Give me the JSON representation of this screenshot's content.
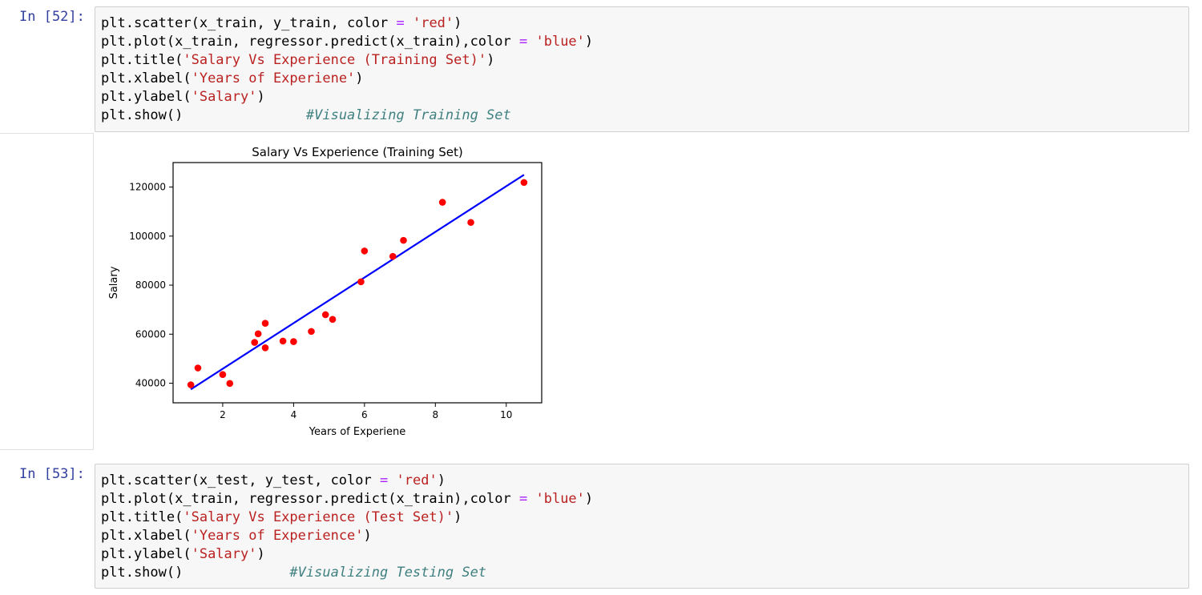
{
  "cell1": {
    "prompt": "In [52]:",
    "code": [
      [
        {
          "t": "plt.scatter(x_train, y_train, color "
        },
        {
          "t": "=",
          "c": "op"
        },
        {
          "t": " "
        },
        {
          "t": "'red'",
          "c": "str"
        },
        {
          "t": ")"
        }
      ],
      [
        {
          "t": "plt.plot(x_train, regressor.predict(x_train),color "
        },
        {
          "t": "=",
          "c": "op"
        },
        {
          "t": " "
        },
        {
          "t": "'blue'",
          "c": "str"
        },
        {
          "t": ")"
        }
      ],
      [
        {
          "t": "plt.title("
        },
        {
          "t": "'Salary Vs Experience (Training Set)'",
          "c": "str"
        },
        {
          "t": ")"
        }
      ],
      [
        {
          "t": "plt.xlabel("
        },
        {
          "t": "'Years of Experiene'",
          "c": "str"
        },
        {
          "t": ")"
        }
      ],
      [
        {
          "t": "plt.ylabel("
        },
        {
          "t": "'Salary'",
          "c": "str"
        },
        {
          "t": ")"
        }
      ],
      [
        {
          "t": "plt.show()               "
        },
        {
          "t": "#Visualizing Training Set",
          "c": "cmt"
        }
      ]
    ]
  },
  "cell2": {
    "prompt": "In [53]:",
    "code": [
      [
        {
          "t": "plt.scatter(x_test, y_test, color "
        },
        {
          "t": "=",
          "c": "op"
        },
        {
          "t": " "
        },
        {
          "t": "'red'",
          "c": "str"
        },
        {
          "t": ")"
        }
      ],
      [
        {
          "t": "plt.plot(x_train, regressor.predict(x_train),color "
        },
        {
          "t": "=",
          "c": "op"
        },
        {
          "t": " "
        },
        {
          "t": "'blue'",
          "c": "str"
        },
        {
          "t": ")"
        }
      ],
      [
        {
          "t": "plt.title("
        },
        {
          "t": "'Salary Vs Experience (Test Set)'",
          "c": "str"
        },
        {
          "t": ")"
        }
      ],
      [
        {
          "t": "plt.xlabel("
        },
        {
          "t": "'Years of Experience'",
          "c": "str"
        },
        {
          "t": ")"
        }
      ],
      [
        {
          "t": "plt.ylabel("
        },
        {
          "t": "'Salary'",
          "c": "str"
        },
        {
          "t": ")"
        }
      ],
      [
        {
          "t": "plt.show()             "
        },
        {
          "t": "#Visualizing Testing Set",
          "c": "cmt"
        }
      ]
    ]
  },
  "colors": {
    "prompt": "#303f9f",
    "string": "#ba2121",
    "operator": "#aa22ff",
    "comment": "#408080",
    "scatter": "#ff0000",
    "line": "#0000ff"
  },
  "chart_data": {
    "type": "scatter",
    "title": "Salary Vs Experience (Training Set)",
    "xlabel": "Years of Experiene",
    "ylabel": "Salary",
    "xlim": [
      0.6,
      11.0
    ],
    "ylim": [
      32000,
      130000
    ],
    "xticks": [
      2,
      4,
      6,
      8,
      10
    ],
    "yticks": [
      40000,
      60000,
      80000,
      100000,
      120000
    ],
    "grid": false,
    "series": [
      {
        "type": "scatter",
        "color": "#ff0000",
        "points": [
          [
            1.1,
            39343
          ],
          [
            1.3,
            46205
          ],
          [
            2.0,
            43525
          ],
          [
            2.2,
            39891
          ],
          [
            2.9,
            56642
          ],
          [
            3.0,
            60150
          ],
          [
            3.2,
            54445
          ],
          [
            3.2,
            64445
          ],
          [
            3.7,
            57189
          ],
          [
            4.0,
            56957
          ],
          [
            4.5,
            61111
          ],
          [
            4.9,
            67938
          ],
          [
            5.1,
            66029
          ],
          [
            5.9,
            81363
          ],
          [
            6.0,
            93940
          ],
          [
            6.8,
            91738
          ],
          [
            7.1,
            98273
          ],
          [
            8.2,
            113812
          ],
          [
            9.0,
            105582
          ],
          [
            10.5,
            121872
          ]
        ]
      },
      {
        "type": "line",
        "color": "#0000ff",
        "points": [
          [
            1.1,
            37500
          ],
          [
            10.5,
            125000
          ]
        ]
      }
    ]
  }
}
